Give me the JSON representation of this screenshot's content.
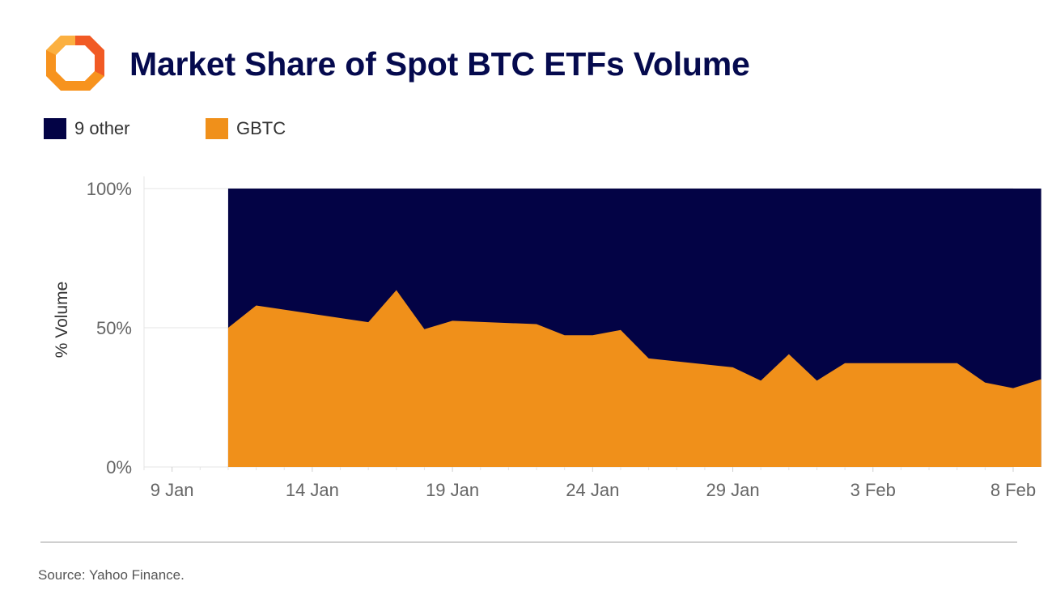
{
  "header": {
    "title": "Market Share of Spot BTC ETFs Volume",
    "logo_icon": "octagon-brackets-logo-icon"
  },
  "colors": {
    "title": "#050a4e",
    "other": "#030345",
    "gbtc": "#f0901a",
    "grid": "#e6e6e6",
    "tick_text": "#666666"
  },
  "legend": [
    {
      "label": "9 other",
      "color": "#030345"
    },
    {
      "label": "GBTC",
      "color": "#f0901a"
    }
  ],
  "chart_data": {
    "type": "area",
    "stacking": "percent",
    "ylabel": "% Volume",
    "ylim": [
      0,
      100
    ],
    "yticks": [
      0,
      50,
      100
    ],
    "ytick_labels": [
      "0%",
      "50%",
      "100%"
    ],
    "xlim": [
      8,
      39
    ],
    "xticks": [
      9,
      14,
      19,
      24,
      29,
      34,
      39
    ],
    "xtick_labels": [
      "9 Jan",
      "14 Jan",
      "19 Jan",
      "24 Jan",
      "29 Jan",
      "3 Feb",
      "8 Feb"
    ],
    "x": [
      11,
      12,
      16,
      17,
      18,
      19,
      22,
      23,
      24,
      25,
      26,
      29,
      30,
      31,
      32,
      33,
      37,
      38,
      39,
      40
    ],
    "series": [
      {
        "name": "GBTC",
        "values": [
          50,
          58,
          52,
          63.5,
          49.5,
          52.5,
          51.3,
          47.3,
          47.3,
          49.2,
          39,
          35.8,
          31,
          40.5,
          31,
          37.3,
          37.3,
          30.3,
          28.3,
          31.5
        ]
      },
      {
        "name": "9 other",
        "values": [
          50,
          42,
          48,
          36.5,
          50.5,
          47.5,
          48.7,
          52.7,
          52.7,
          50.8,
          61,
          64.2,
          69,
          59.5,
          69,
          62.7,
          62.7,
          69.7,
          71.7,
          68.5
        ]
      }
    ]
  },
  "footer": {
    "source": "Source: Yahoo Finance."
  }
}
